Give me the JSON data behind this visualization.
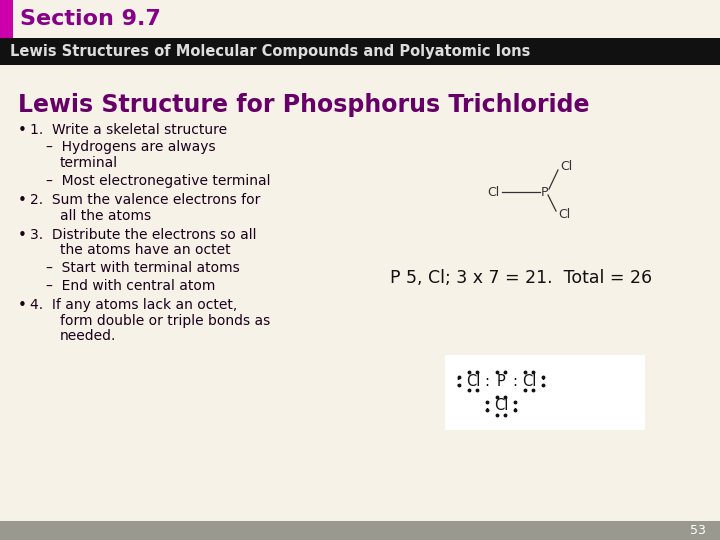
{
  "section_title": "Section 9.7",
  "section_text_color": "#880088",
  "accent_color": "#cc00aa",
  "header_bg": "#111111",
  "header_text": "Lewis Structures of Molecular Compounds and Polyatomic Ions",
  "header_text_color": "#dddddd",
  "slide_bg": "#f7f2e8",
  "main_title": "Lewis Structure for Phosphorus Trichloride",
  "main_title_color": "#660066",
  "bullet_color": "#1a001a",
  "page_number": "53",
  "formula_text": "P 5, Cl; 3 x 7 = 21.  Total = 26",
  "bottom_bar_color": "#999990"
}
